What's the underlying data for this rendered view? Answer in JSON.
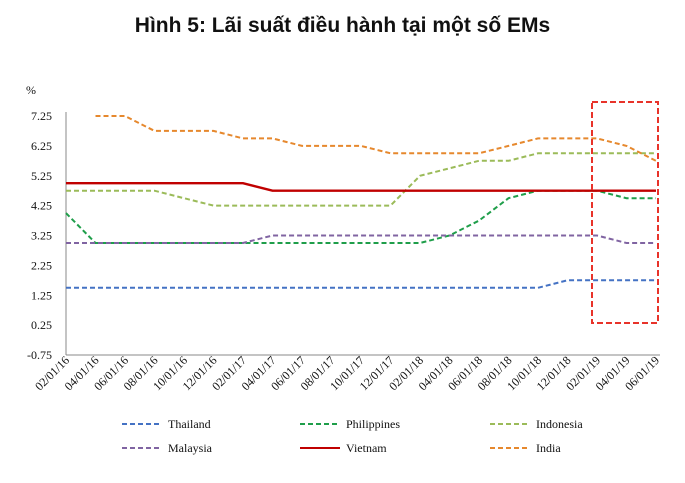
{
  "chart_data": {
    "type": "line",
    "title": "Hình 5: Lãi suất điều hành tại một số EMs",
    "yunit": "%",
    "ylim": [
      -0.75,
      7.25
    ],
    "yticks": [
      "7.25",
      "6.25",
      "5.25",
      "4.25",
      "3.25",
      "2.25",
      "1.25",
      "0.25",
      "-0.75"
    ],
    "x": [
      "02/01/16",
      "04/01/16",
      "06/01/16",
      "08/01/16",
      "10/01/16",
      "12/01/16",
      "02/01/17",
      "04/01/17",
      "06/01/17",
      "08/01/17",
      "10/01/17",
      "12/01/17",
      "02/01/18",
      "04/01/18",
      "06/01/18",
      "08/01/18",
      "10/01/18",
      "12/01/18",
      "02/01/19",
      "04/01/19",
      "06/01/19"
    ],
    "legend_position": "bottom",
    "highlight_box": {
      "from": "02/01/19",
      "to": "06/01/19",
      "color": "#e8332a"
    },
    "series": [
      {
        "name": "Thailand",
        "color": "#4472c4",
        "dash": true,
        "values": [
          1.5,
          1.5,
          1.5,
          1.5,
          1.5,
          1.5,
          1.5,
          1.5,
          1.5,
          1.5,
          1.5,
          1.5,
          1.5,
          1.5,
          1.5,
          1.5,
          1.5,
          1.75,
          1.75,
          1.75,
          1.75
        ]
      },
      {
        "name": "Philippines",
        "color": "#1f9e4a",
        "dash": true,
        "values": [
          4.0,
          3.0,
          3.0,
          3.0,
          3.0,
          3.0,
          3.0,
          3.0,
          3.0,
          3.0,
          3.0,
          3.0,
          3.0,
          3.25,
          3.75,
          4.5,
          4.75,
          4.75,
          4.75,
          4.5,
          4.5
        ]
      },
      {
        "name": "Indonesia",
        "color": "#9bbb59",
        "dash": true,
        "values": [
          4.75,
          4.75,
          4.75,
          4.75,
          4.5,
          4.25,
          4.25,
          4.25,
          4.25,
          4.25,
          4.25,
          4.25,
          5.25,
          5.5,
          5.75,
          5.75,
          6.0,
          6.0,
          6.0,
          6.0,
          6.0
        ]
      },
      {
        "name": "Malaysia",
        "color": "#8064a2",
        "dash": true,
        "values": [
          3.0,
          3.0,
          3.0,
          3.0,
          3.0,
          3.0,
          3.0,
          3.25,
          3.25,
          3.25,
          3.25,
          3.25,
          3.25,
          3.25,
          3.25,
          3.25,
          3.25,
          3.25,
          3.25,
          3.0,
          3.0
        ]
      },
      {
        "name": "Vietnam",
        "color": "#c00000",
        "dash": false,
        "values": [
          5.0,
          5.0,
          5.0,
          5.0,
          5.0,
          5.0,
          5.0,
          4.75,
          4.75,
          4.75,
          4.75,
          4.75,
          4.75,
          4.75,
          4.75,
          4.75,
          4.75,
          4.75,
          4.75,
          4.75,
          4.75
        ]
      },
      {
        "name": "India",
        "color": "#e6882d",
        "dash": true,
        "values": [
          null,
          7.25,
          7.25,
          6.75,
          6.75,
          6.75,
          6.5,
          6.5,
          6.25,
          6.25,
          6.25,
          6.0,
          6.0,
          6.0,
          6.0,
          6.25,
          6.5,
          6.5,
          6.5,
          6.25,
          5.75
        ]
      }
    ]
  }
}
